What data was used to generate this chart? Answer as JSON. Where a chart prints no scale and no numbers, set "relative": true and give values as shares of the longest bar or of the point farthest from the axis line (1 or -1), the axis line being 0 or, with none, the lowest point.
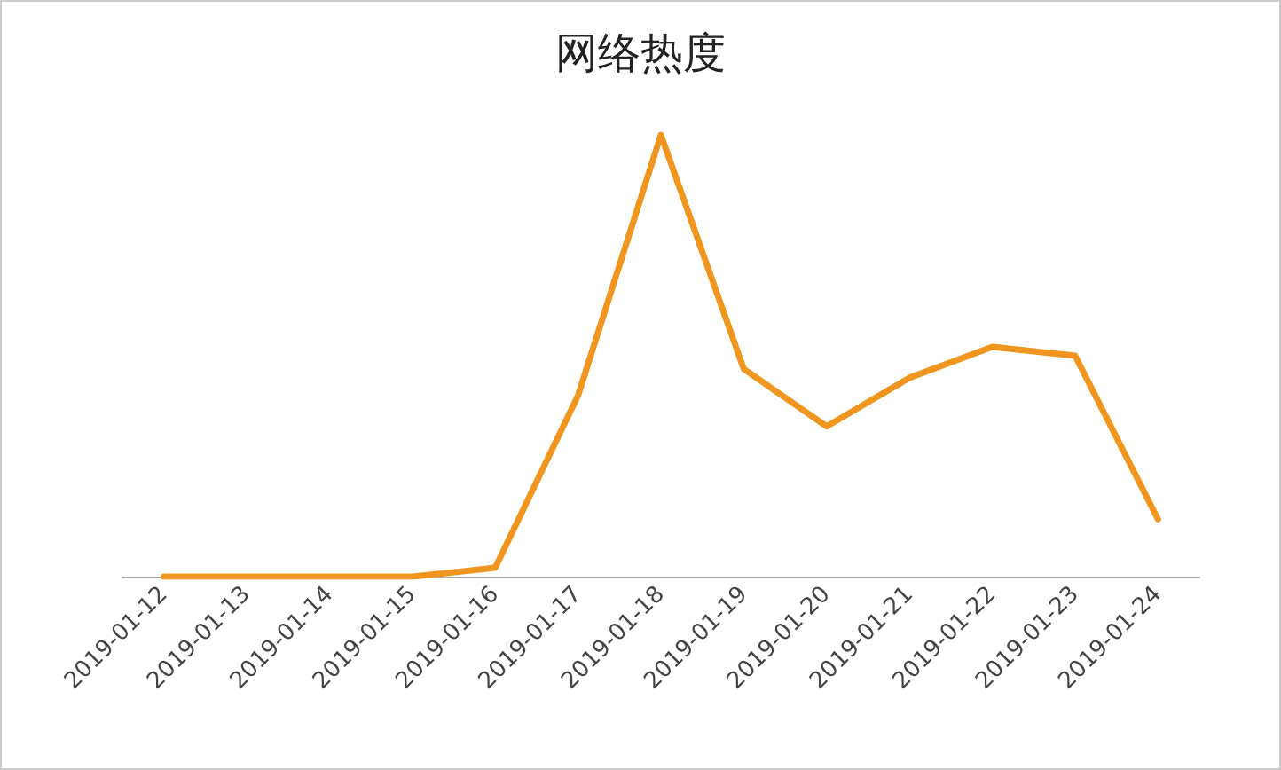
{
  "chart_data": {
    "type": "line",
    "title": "网络热度",
    "relative": true,
    "categories": [
      "2019-01-12",
      "2019-01-13",
      "2019-01-14",
      "2019-01-15",
      "2019-01-16",
      "2019-01-17",
      "2019-01-18",
      "2019-01-19",
      "2019-01-20",
      "2019-01-21",
      "2019-01-22",
      "2019-01-23",
      "2019-01-24"
    ],
    "series": [
      {
        "color": "#f0961e",
        "values": [
          0,
          0,
          0,
          0,
          0.02,
          0.41,
          1,
          0.47,
          0.34,
          0.45,
          0.52,
          0.5,
          0.13
        ]
      }
    ],
    "grid": false,
    "marker": "none",
    "line_style": "solid"
  }
}
